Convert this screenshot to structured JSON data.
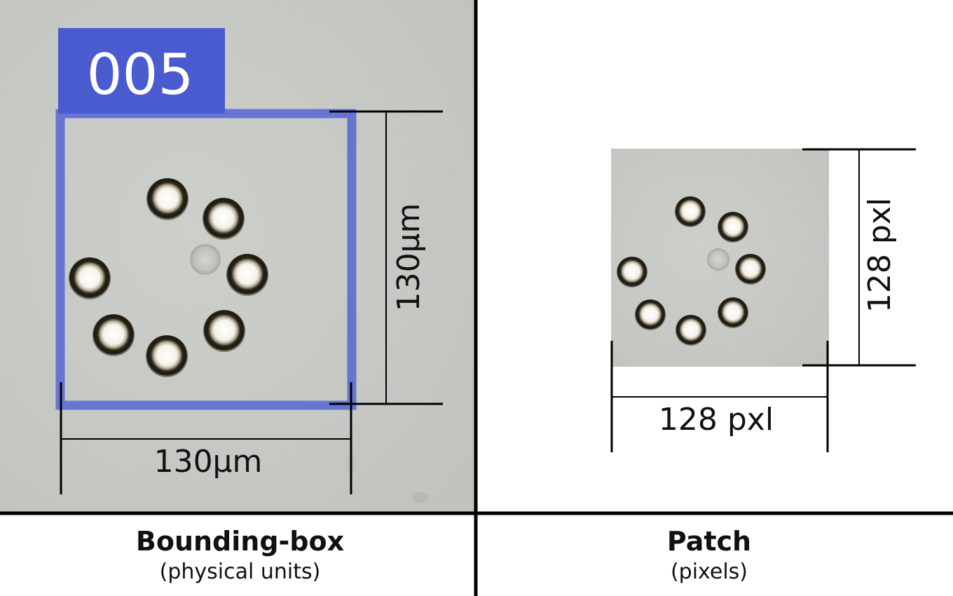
{
  "left_panel": {
    "id_label": "005",
    "width_label": "130μm",
    "height_label": "130μm",
    "caption_title": "Bounding-box",
    "caption_subtitle": "(physical units)"
  },
  "right_panel": {
    "width_label": "128 pxl",
    "height_label": "128 pxl",
    "caption_title": "Patch",
    "caption_subtitle": "(pixels)"
  },
  "colors": {
    "microscope_background": "#c9cbc7",
    "bounding_box": "#5a6bd2",
    "label_fill": "#4a5bcf",
    "label_text": "#ffffff",
    "divider": "#000000",
    "dimension_lines": "#000000"
  }
}
